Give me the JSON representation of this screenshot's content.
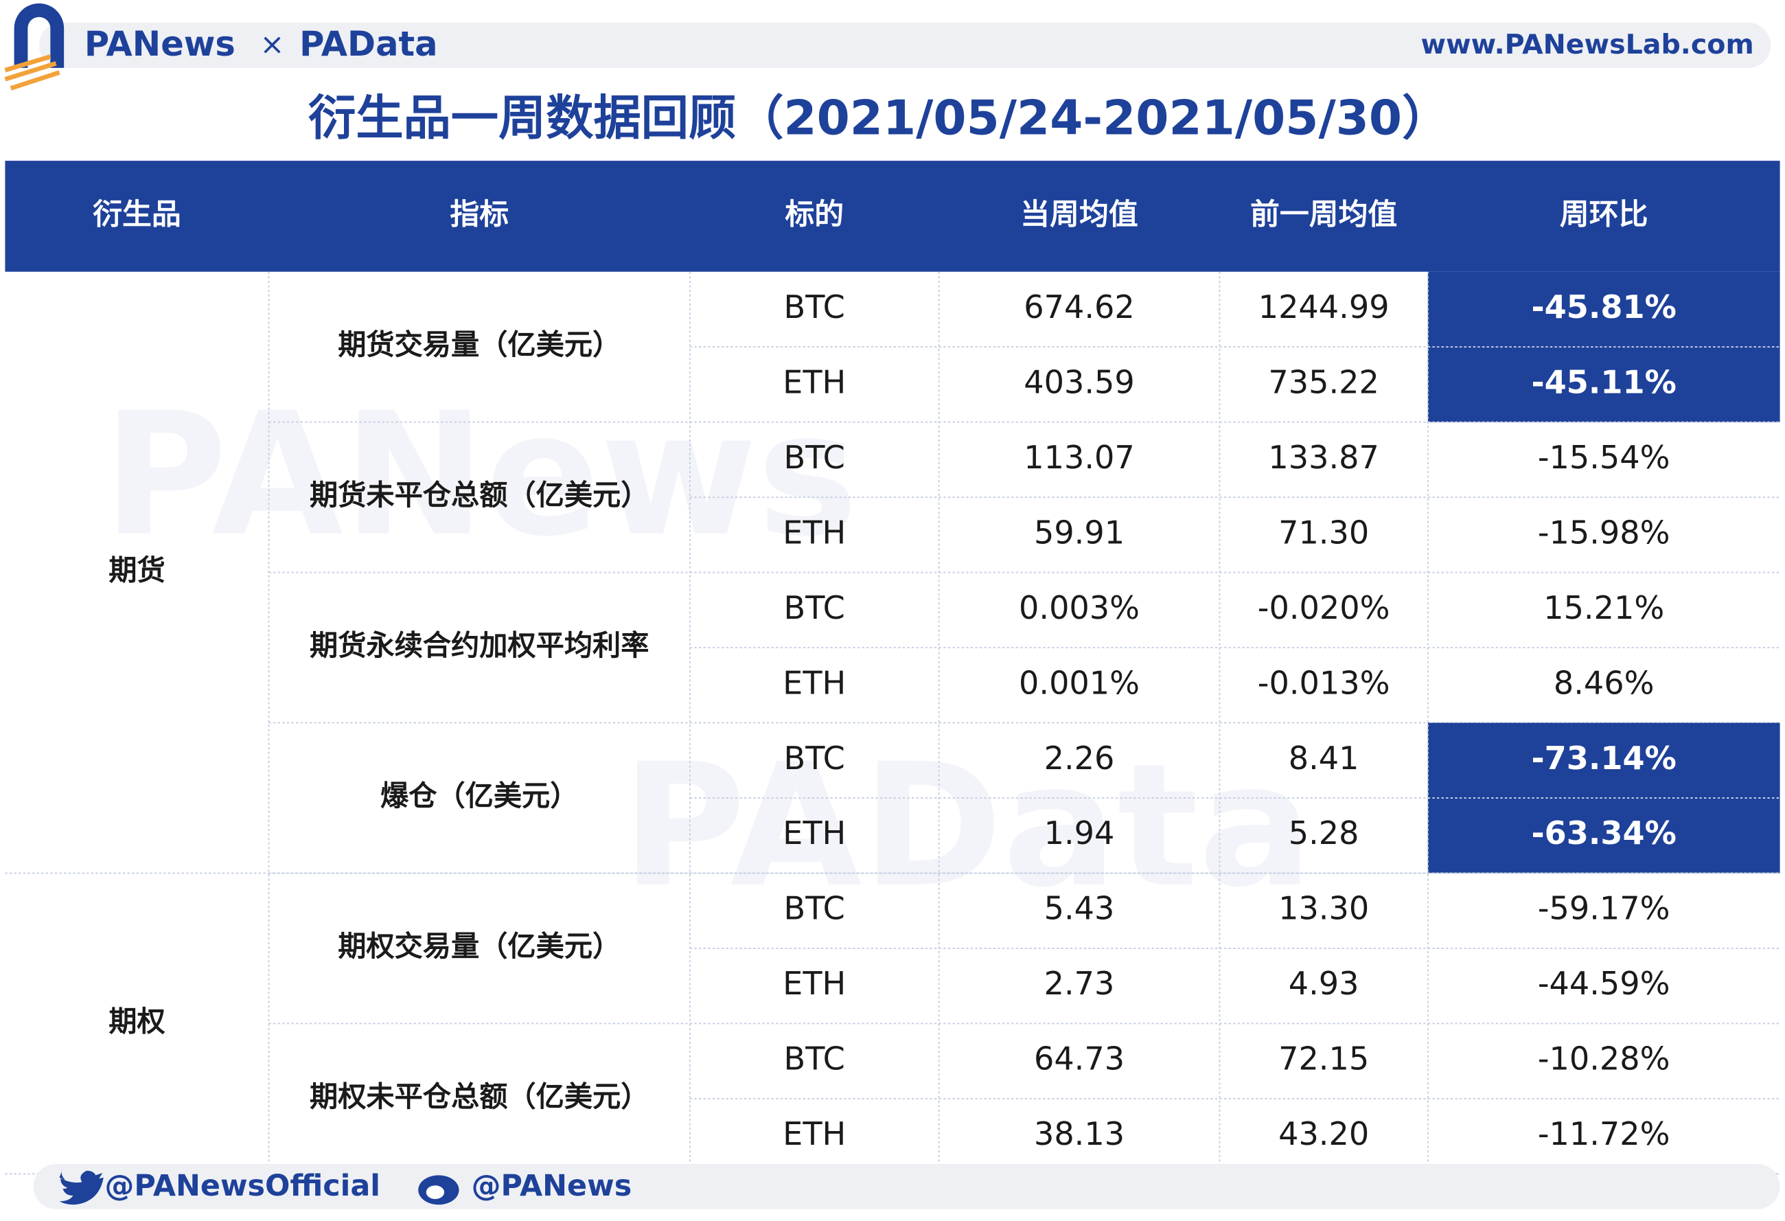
{
  "header": {
    "brand": "PANews",
    "separator": "×",
    "brand2": "PAData",
    "url": "www.PANewsLab.com"
  },
  "title": "衍生品一周数据回顾（2021/05/24-2021/05/30）",
  "table": {
    "columns": [
      "衍生品",
      "指标",
      "标的",
      "当周均值",
      "前一周均值",
      "周环比"
    ],
    "groups": [
      {
        "name": "期货",
        "metrics": [
          {
            "name": "期货交易量（亿美元）",
            "rows": [
              {
                "asset": "BTC",
                "current": "674.62",
                "previous": "1244.99",
                "change": "-45.81%",
                "highlight": true
              },
              {
                "asset": "ETH",
                "current": "403.59",
                "previous": "735.22",
                "change": "-45.11%",
                "highlight": true
              }
            ]
          },
          {
            "name": "期货未平仓总额（亿美元）",
            "rows": [
              {
                "asset": "BTC",
                "current": "113.07",
                "previous": "133.87",
                "change": "-15.54%",
                "highlight": false
              },
              {
                "asset": "ETH",
                "current": "59.91",
                "previous": "71.30",
                "change": "-15.98%",
                "highlight": false
              }
            ]
          },
          {
            "name": "期货永续合约加权平均利率",
            "rows": [
              {
                "asset": "BTC",
                "current": "0.003%",
                "previous": "-0.020%",
                "change": "15.21%",
                "highlight": false
              },
              {
                "asset": "ETH",
                "current": "0.001%",
                "previous": "-0.013%",
                "change": "8.46%",
                "highlight": false
              }
            ]
          },
          {
            "name": "爆仓（亿美元）",
            "rows": [
              {
                "asset": "BTC",
                "current": "2.26",
                "previous": "8.41",
                "change": "-73.14%",
                "highlight": true
              },
              {
                "asset": "ETH",
                "current": "1.94",
                "previous": "5.28",
                "change": "-63.34%",
                "highlight": true
              }
            ]
          }
        ]
      },
      {
        "name": "期权",
        "metrics": [
          {
            "name": "期权交易量（亿美元）",
            "rows": [
              {
                "asset": "BTC",
                "current": "5.43",
                "previous": "13.30",
                "change": "-59.17%",
                "highlight": false
              },
              {
                "asset": "ETH",
                "current": "2.73",
                "previous": "4.93",
                "change": "-44.59%",
                "highlight": false
              }
            ]
          },
          {
            "name": "期权未平仓总额（亿美元）",
            "rows": [
              {
                "asset": "BTC",
                "current": "64.73",
                "previous": "72.15",
                "change": "-10.28%",
                "highlight": false
              },
              {
                "asset": "ETH",
                "current": "38.13",
                "previous": "43.20",
                "change": "-11.72%",
                "highlight": false
              }
            ]
          }
        ]
      }
    ]
  },
  "footer": {
    "twitter": "@PANewsOfficial",
    "weibo": "@PANews"
  }
}
